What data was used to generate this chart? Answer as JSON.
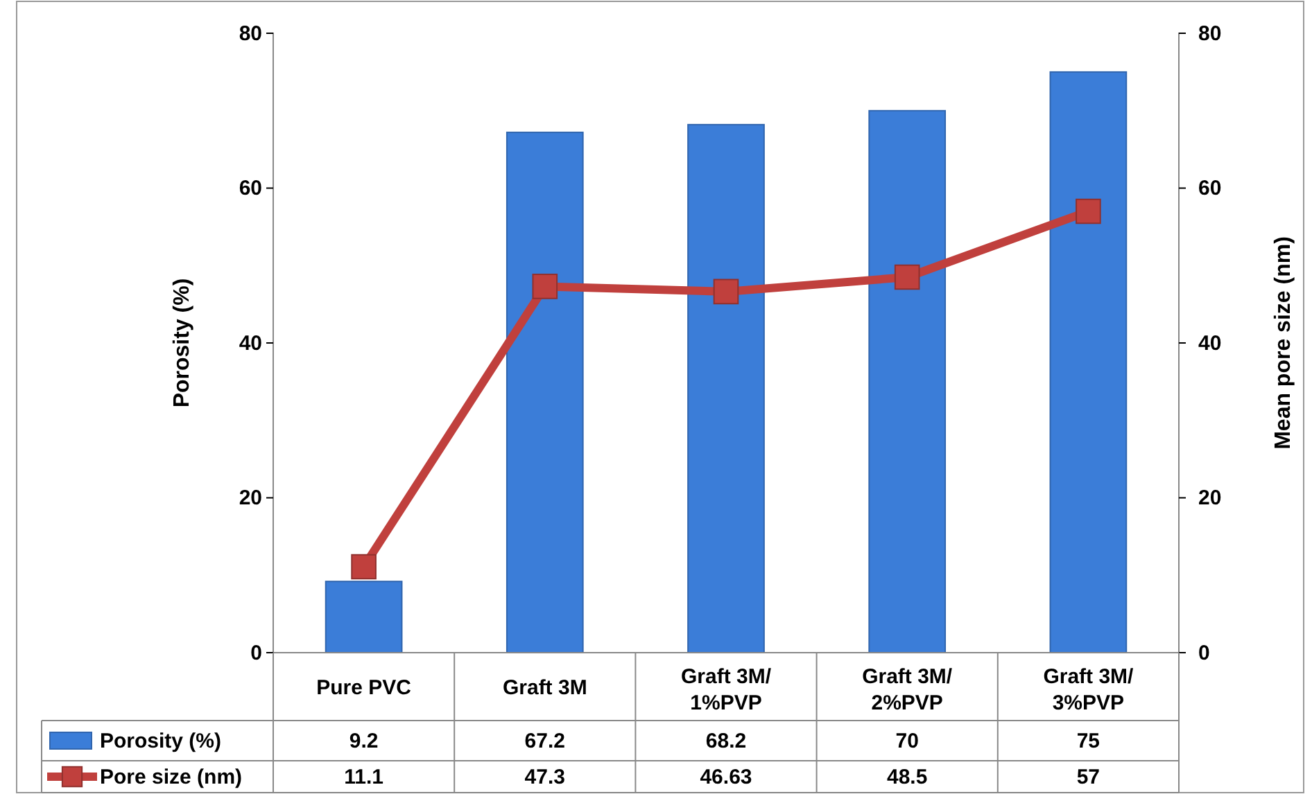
{
  "chart_data": {
    "type": "bar",
    "categories": [
      "Pure PVC",
      "Graft 3M",
      "Graft 3M/ 1%PVP",
      "Graft 3M/ 2%PVP",
      "Graft 3M/ 3%PVP"
    ],
    "series": [
      {
        "name": "Porosity (%)",
        "color": "#3b7dd8",
        "values": [
          9.2,
          67.2,
          68.2,
          70,
          75
        ]
      },
      {
        "name": "Pore size (nm)",
        "type": "line",
        "axis": "y2",
        "color": "#c0403d",
        "values": [
          11.1,
          47.3,
          46.63,
          48.5,
          57
        ]
      }
    ],
    "ylabel": "Porosity (%)",
    "y2label": "Mean pore size (nm)",
    "ylim": [
      0,
      80
    ],
    "yticks": [
      0,
      20,
      40,
      60,
      80
    ],
    "y2lim": [
      0,
      80
    ],
    "y2ticks": [
      0,
      20,
      40,
      60,
      80
    ],
    "data_labels": true,
    "marker": "square",
    "legend": "bottom",
    "grid": false
  }
}
